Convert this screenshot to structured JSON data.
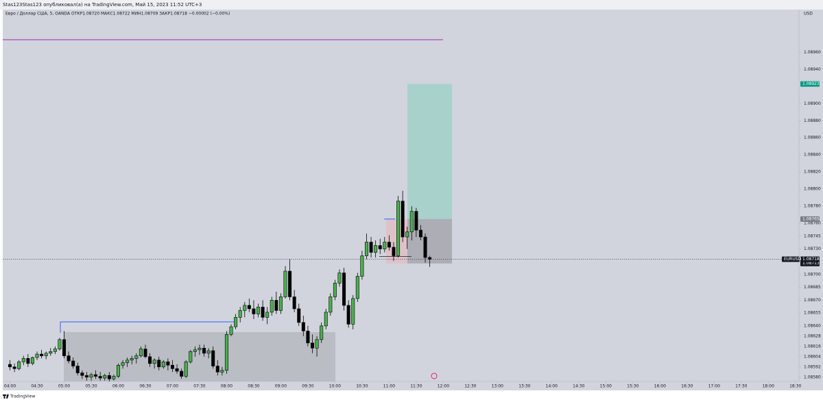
{
  "chart_data": {
    "type": "candlestick",
    "title": "Stas123Stas123 опубликовал(а) на TradingView.com, Май 15, 2023 11:52 UTC+3",
    "subtitle": "Евро / Доллар США, 5, OANDA  ОТКР1.08720  МАКС1.08722  МИН1.08709  ЗАКР1.08718  −0.00002 (−0.00%)",
    "currency": "USD",
    "brand": "TradingView",
    "symbol": "EURUSD",
    "last": 1.08718,
    "up_color": "#4caf50",
    "down_color": "#000000",
    "x": [
      "04:00",
      "04:05",
      "04:10",
      "04:15",
      "04:20",
      "04:25",
      "04:30",
      "04:35",
      "04:40",
      "04:45",
      "04:50",
      "04:55",
      "05:00",
      "05:05",
      "05:10",
      "05:15",
      "05:20",
      "05:25",
      "05:30",
      "05:35",
      "05:40",
      "05:45",
      "05:50",
      "05:55",
      "06:00",
      "06:05",
      "06:10",
      "06:15",
      "06:20",
      "06:25",
      "06:30",
      "06:35",
      "06:40",
      "06:45",
      "06:50",
      "06:55",
      "07:00",
      "07:05",
      "07:10",
      "07:15",
      "07:20",
      "07:25",
      "07:30",
      "07:35",
      "07:40",
      "07:45",
      "07:50",
      "07:55",
      "08:00",
      "08:05",
      "08:10",
      "08:15",
      "08:20",
      "08:25",
      "08:30",
      "08:35",
      "08:40",
      "08:45",
      "08:50",
      "08:55",
      "09:00",
      "09:05",
      "09:10",
      "09:15",
      "09:20",
      "09:25",
      "09:30",
      "09:35",
      "09:40",
      "09:45",
      "09:50",
      "09:55",
      "10:00",
      "10:05",
      "10:10",
      "10:15",
      "10:20",
      "10:25",
      "10:30",
      "10:35",
      "10:40",
      "10:45",
      "10:50",
      "10:55",
      "11:00",
      "11:05",
      "11:10",
      "11:15",
      "11:20",
      "11:25",
      "11:30",
      "11:35",
      "11:40",
      "11:45"
    ],
    "open": [
      1.08595,
      1.08592,
      1.0859,
      1.08598,
      1.08602,
      1.08596,
      1.08603,
      1.08607,
      1.08605,
      1.08608,
      1.0861,
      1.08613,
      1.08624,
      1.08605,
      1.08599,
      1.08593,
      1.08585,
      1.08582,
      1.0858,
      1.08583,
      1.08581,
      1.08579,
      1.08582,
      1.08578,
      1.08581,
      1.08594,
      1.08597,
      1.086,
      1.08602,
      1.08605,
      1.08613,
      1.08604,
      1.08596,
      1.086,
      1.08592,
      1.08598,
      1.08594,
      1.0859,
      1.08587,
      1.08581,
      1.08598,
      1.0861,
      1.08612,
      1.08614,
      1.08608,
      1.08611,
      1.08593,
      1.08586,
      1.08588,
      1.0863,
      1.08639,
      1.0865,
      1.08658,
      1.08664,
      1.0866,
      1.08654,
      1.08662,
      1.0865,
      1.08656,
      1.0867,
      1.08658,
      1.08674,
      1.08704,
      1.08674,
      1.0866,
      1.08644,
      1.08634,
      1.0862,
      1.08614,
      1.08624,
      1.0864,
      1.08656,
      1.08674,
      1.0869,
      1.08702,
      1.08664,
      1.08642,
      1.08672,
      1.08698,
      1.08722,
      1.08738,
      1.08726,
      1.08734,
      1.0873,
      1.08738,
      1.08732,
      1.08722,
      1.08786,
      1.08744,
      1.0875,
      1.08774,
      1.08752,
      1.08744,
      1.0872
    ],
    "high": [
      1.086,
      1.08596,
      1.086,
      1.08605,
      1.08607,
      1.08604,
      1.0861,
      1.08612,
      1.0861,
      1.08614,
      1.08616,
      1.08626,
      1.08634,
      1.0861,
      1.08603,
      1.08597,
      1.08588,
      1.08586,
      1.08585,
      1.08588,
      1.08586,
      1.08584,
      1.08586,
      1.08583,
      1.08596,
      1.086,
      1.08603,
      1.08605,
      1.08608,
      1.08616,
      1.08618,
      1.08608,
      1.08602,
      1.08604,
      1.086,
      1.08602,
      1.086,
      1.08595,
      1.0859,
      1.086,
      1.08612,
      1.08616,
      1.08618,
      1.08618,
      1.08614,
      1.08616,
      1.086,
      1.08592,
      1.08634,
      1.08642,
      1.08654,
      1.08662,
      1.08668,
      1.08672,
      1.0867,
      1.08666,
      1.0867,
      1.08662,
      1.08674,
      1.0868,
      1.08678,
      1.0871,
      1.08718,
      1.08682,
      1.08666,
      1.08652,
      1.0864,
      1.0863,
      1.08628,
      1.08644,
      1.0866,
      1.08678,
      1.08694,
      1.08706,
      1.08708,
      1.0867,
      1.08676,
      1.08702,
      1.08728,
      1.08748,
      1.08744,
      1.0874,
      1.08742,
      1.08744,
      1.08746,
      1.08738,
      1.08792,
      1.08798,
      1.08756,
      1.0878,
      1.08778,
      1.08758,
      1.08748,
      1.08722
    ],
    "low": [
      1.08588,
      1.08586,
      1.08588,
      1.08594,
      1.08592,
      1.08594,
      1.086,
      1.08602,
      1.08601,
      1.08605,
      1.08607,
      1.08611,
      1.08602,
      1.08596,
      1.0859,
      1.08582,
      1.08578,
      1.08576,
      1.08576,
      1.08578,
      1.08576,
      1.08576,
      1.08575,
      1.08576,
      1.08579,
      1.0859,
      1.08592,
      1.08595,
      1.08596,
      1.08603,
      1.08602,
      1.08592,
      1.0859,
      1.08588,
      1.0859,
      1.08588,
      1.08586,
      1.08584,
      1.08578,
      1.08579,
      1.08596,
      1.08604,
      1.08606,
      1.08604,
      1.08602,
      1.0859,
      1.08582,
      1.08582,
      1.08584,
      1.08628,
      1.08636,
      1.08644,
      1.0865,
      1.08656,
      1.08648,
      1.0865,
      1.08646,
      1.08642,
      1.08652,
      1.08654,
      1.08654,
      1.08672,
      1.0867,
      1.08656,
      1.0864,
      1.08628,
      1.08616,
      1.08608,
      1.08604,
      1.0862,
      1.08636,
      1.08652,
      1.0867,
      1.08686,
      1.08658,
      1.08638,
      1.08636,
      1.08668,
      1.08694,
      1.08718,
      1.0872,
      1.0872,
      1.08724,
      1.08726,
      1.08728,
      1.08716,
      1.0872,
      1.08738,
      1.0873,
      1.0874,
      1.08744,
      1.0874,
      1.08714,
      1.08709
    ],
    "close": [
      1.08592,
      1.0859,
      1.08598,
      1.08602,
      1.08596,
      1.08603,
      1.08607,
      1.08605,
      1.08608,
      1.0861,
      1.08613,
      1.08624,
      1.08605,
      1.08599,
      1.08593,
      1.08585,
      1.08582,
      1.0858,
      1.08583,
      1.08581,
      1.08579,
      1.08582,
      1.08578,
      1.08581,
      1.08594,
      1.08597,
      1.086,
      1.08602,
      1.08605,
      1.08613,
      1.08604,
      1.08596,
      1.086,
      1.08592,
      1.08598,
      1.08594,
      1.0859,
      1.08587,
      1.08581,
      1.08598,
      1.0861,
      1.08612,
      1.08614,
      1.08608,
      1.08611,
      1.08593,
      1.08586,
      1.08588,
      1.0863,
      1.08639,
      1.0865,
      1.08658,
      1.08664,
      1.0866,
      1.08654,
      1.08662,
      1.0865,
      1.08656,
      1.0867,
      1.08658,
      1.08674,
      1.08704,
      1.08674,
      1.0866,
      1.08644,
      1.08634,
      1.0862,
      1.08614,
      1.08624,
      1.0864,
      1.08656,
      1.08674,
      1.0869,
      1.08702,
      1.08664,
      1.08642,
      1.08672,
      1.08698,
      1.08722,
      1.08738,
      1.08726,
      1.08734,
      1.0873,
      1.08738,
      1.08732,
      1.08722,
      1.08786,
      1.08744,
      1.0875,
      1.08774,
      1.08752,
      1.08744,
      1.0872,
      1.08718
    ],
    "xlim": [
      "03:52",
      "18:34"
    ],
    "xticks": [
      "04:00",
      "04:30",
      "05:00",
      "05:30",
      "06:00",
      "06:30",
      "07:00",
      "07:30",
      "08:00",
      "08:30",
      "09:00",
      "09:30",
      "10:00",
      "10:30",
      "11:00",
      "11:30",
      "12:00",
      "12:30",
      "13:00",
      "13:30",
      "14:00",
      "14:30",
      "15:00",
      "15:30",
      "16:00",
      "16:30",
      "17:00",
      "17:30",
      "18:00",
      "18:30"
    ],
    "ylim": [
      1.08575,
      1.0901
    ],
    "yticks": [
      {
        "value": 1.0896,
        "label": "1.08960"
      },
      {
        "value": 1.0894,
        "label": "1.08940"
      },
      {
        "value": 1.089,
        "label": "1.08900"
      },
      {
        "value": 1.0888,
        "label": "1.08880"
      },
      {
        "value": 1.0886,
        "label": "1.08860"
      },
      {
        "value": 1.0884,
        "label": "1.08840"
      },
      {
        "value": 1.0882,
        "label": "1.08820"
      },
      {
        "value": 1.088,
        "label": "1.08800"
      },
      {
        "value": 1.0878,
        "label": "1.08780"
      },
      {
        "value": 1.0876,
        "label": "1.08760"
      },
      1.08745,
      {
        "value": 1.0873,
        "label": "1.08730"
      },
      {
        "value": 1.087,
        "label": "1.08700"
      },
      1.08685,
      {
        "value": 1.0867,
        "label": "1.08670"
      },
      1.08655,
      {
        "value": 1.0864,
        "label": "1.08640"
      },
      1.08628,
      1.08616,
      1.08604,
      1.08592,
      {
        "value": 1.0858,
        "label": "1.08580"
      }
    ],
    "price_labels": {
      "target": 1.08923,
      "entry": 1.08765,
      "stop": 1.08713
    }
  }
}
